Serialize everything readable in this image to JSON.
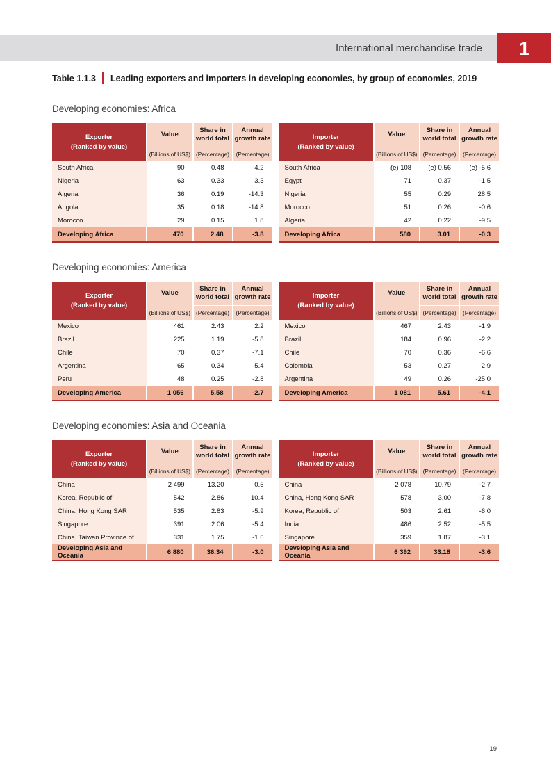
{
  "header": {
    "title": "International merchandise trade",
    "chapter": "1"
  },
  "caption": {
    "label": "Table 1.1.3",
    "title": "Leading exporters and importers in developing economies, by group of economies, 2019"
  },
  "labels": {
    "exporter": "Exporter",
    "importer": "Importer",
    "ranked": "(Ranked by value)",
    "value": "Value",
    "value_unit": "(Billions of US$)",
    "share_l1": "Share in",
    "share_l2": "world total",
    "growth_l1": "Annual",
    "growth_l2": "growth rate",
    "pct": "(Percentage)"
  },
  "colors": {
    "header_red": "#b03133",
    "badge_red": "#c2262d",
    "rule_red": "#ae2f2e",
    "pink": "#f7d5c6",
    "light_pink": "#fcebe3",
    "total_bg": "#f0b198",
    "bar_gray": "#dcdcde"
  },
  "page_number": "19",
  "sections": [
    {
      "heading": "Developing economies: Africa",
      "exporter": {
        "rows": [
          {
            "name": "South Africa",
            "value": "90",
            "share": "0.48",
            "growth": "-4.2"
          },
          {
            "name": "Nigeria",
            "value": "63",
            "share": "0.33",
            "growth": "3.3"
          },
          {
            "name": "Algeria",
            "value": "36",
            "share": "0.19",
            "growth": "-14.3"
          },
          {
            "name": "Angola",
            "value": "35",
            "share": "0.18",
            "growth": "-14.8"
          },
          {
            "name": "Morocco",
            "value": "29",
            "share": "0.15",
            "growth": "1.8"
          }
        ],
        "total": {
          "name": "Developing Africa",
          "value": "470",
          "share": "2.48",
          "growth": "-3.8"
        }
      },
      "importer": {
        "rows": [
          {
            "name": "South Africa",
            "value": "(e) 108",
            "share": "(e) 0.56",
            "growth": "(e) -5.6"
          },
          {
            "name": "Egypt",
            "value": "71",
            "share": "0.37",
            "growth": "-1.5"
          },
          {
            "name": "Nigeria",
            "value": "55",
            "share": "0.29",
            "growth": "28.5"
          },
          {
            "name": "Morocco",
            "value": "51",
            "share": "0.26",
            "growth": "-0.6"
          },
          {
            "name": "Algeria",
            "value": "42",
            "share": "0.22",
            "growth": "-9.5"
          }
        ],
        "total": {
          "name": "Developing Africa",
          "value": "580",
          "share": "3.01",
          "growth": "-0.3"
        }
      }
    },
    {
      "heading": "Developing economies: America",
      "exporter": {
        "rows": [
          {
            "name": "Mexico",
            "value": "461",
            "share": "2.43",
            "growth": "2.2"
          },
          {
            "name": "Brazil",
            "value": "225",
            "share": "1.19",
            "growth": "-5.8"
          },
          {
            "name": "Chile",
            "value": "70",
            "share": "0.37",
            "growth": "-7.1"
          },
          {
            "name": "Argentina",
            "value": "65",
            "share": "0.34",
            "growth": "5.4"
          },
          {
            "name": "Peru",
            "value": "48",
            "share": "0.25",
            "growth": "-2.8"
          }
        ],
        "total": {
          "name": "Developing America",
          "value": "1 056",
          "share": "5.58",
          "growth": "-2.7"
        }
      },
      "importer": {
        "rows": [
          {
            "name": "Mexico",
            "value": "467",
            "share": "2.43",
            "growth": "-1.9"
          },
          {
            "name": "Brazil",
            "value": "184",
            "share": "0.96",
            "growth": "-2.2"
          },
          {
            "name": "Chile",
            "value": "70",
            "share": "0.36",
            "growth": "-6.6"
          },
          {
            "name": "Colombia",
            "value": "53",
            "share": "0.27",
            "growth": "2.9"
          },
          {
            "name": "Argentina",
            "value": "49",
            "share": "0.26",
            "growth": "-25.0"
          }
        ],
        "total": {
          "name": "Developing America",
          "value": "1 081",
          "share": "5.61",
          "growth": "-4.1"
        }
      }
    },
    {
      "heading": "Developing economies: Asia and Oceania",
      "exporter": {
        "rows": [
          {
            "name": "China",
            "value": "2 499",
            "share": "13.20",
            "growth": "0.5"
          },
          {
            "name": "Korea, Republic of",
            "value": "542",
            "share": "2.86",
            "growth": "-10.4"
          },
          {
            "name": "China, Hong Kong SAR",
            "value": "535",
            "share": "2.83",
            "growth": "-5.9"
          },
          {
            "name": "Singapore",
            "value": "391",
            "share": "2.06",
            "growth": "-5.4"
          },
          {
            "name": "China, Taiwan Province of",
            "value": "331",
            "share": "1.75",
            "growth": "-1.6"
          }
        ],
        "total": {
          "name": "Developing Asia and Oceania",
          "value": "6 880",
          "share": "36.34",
          "growth": "-3.0"
        }
      },
      "importer": {
        "rows": [
          {
            "name": "China",
            "value": "2 078",
            "share": "10.79",
            "growth": "-2.7"
          },
          {
            "name": "China, Hong Kong SAR",
            "value": "578",
            "share": "3.00",
            "growth": "-7.8"
          },
          {
            "name": "Korea, Republic of",
            "value": "503",
            "share": "2.61",
            "growth": "-6.0"
          },
          {
            "name": "India",
            "value": "486",
            "share": "2.52",
            "growth": "-5.5"
          },
          {
            "name": "Singapore",
            "value": "359",
            "share": "1.87",
            "growth": "-3.1"
          }
        ],
        "total": {
          "name": "Developing Asia and Oceania",
          "value": "6 392",
          "share": "33.18",
          "growth": "-3.6"
        }
      }
    }
  ]
}
